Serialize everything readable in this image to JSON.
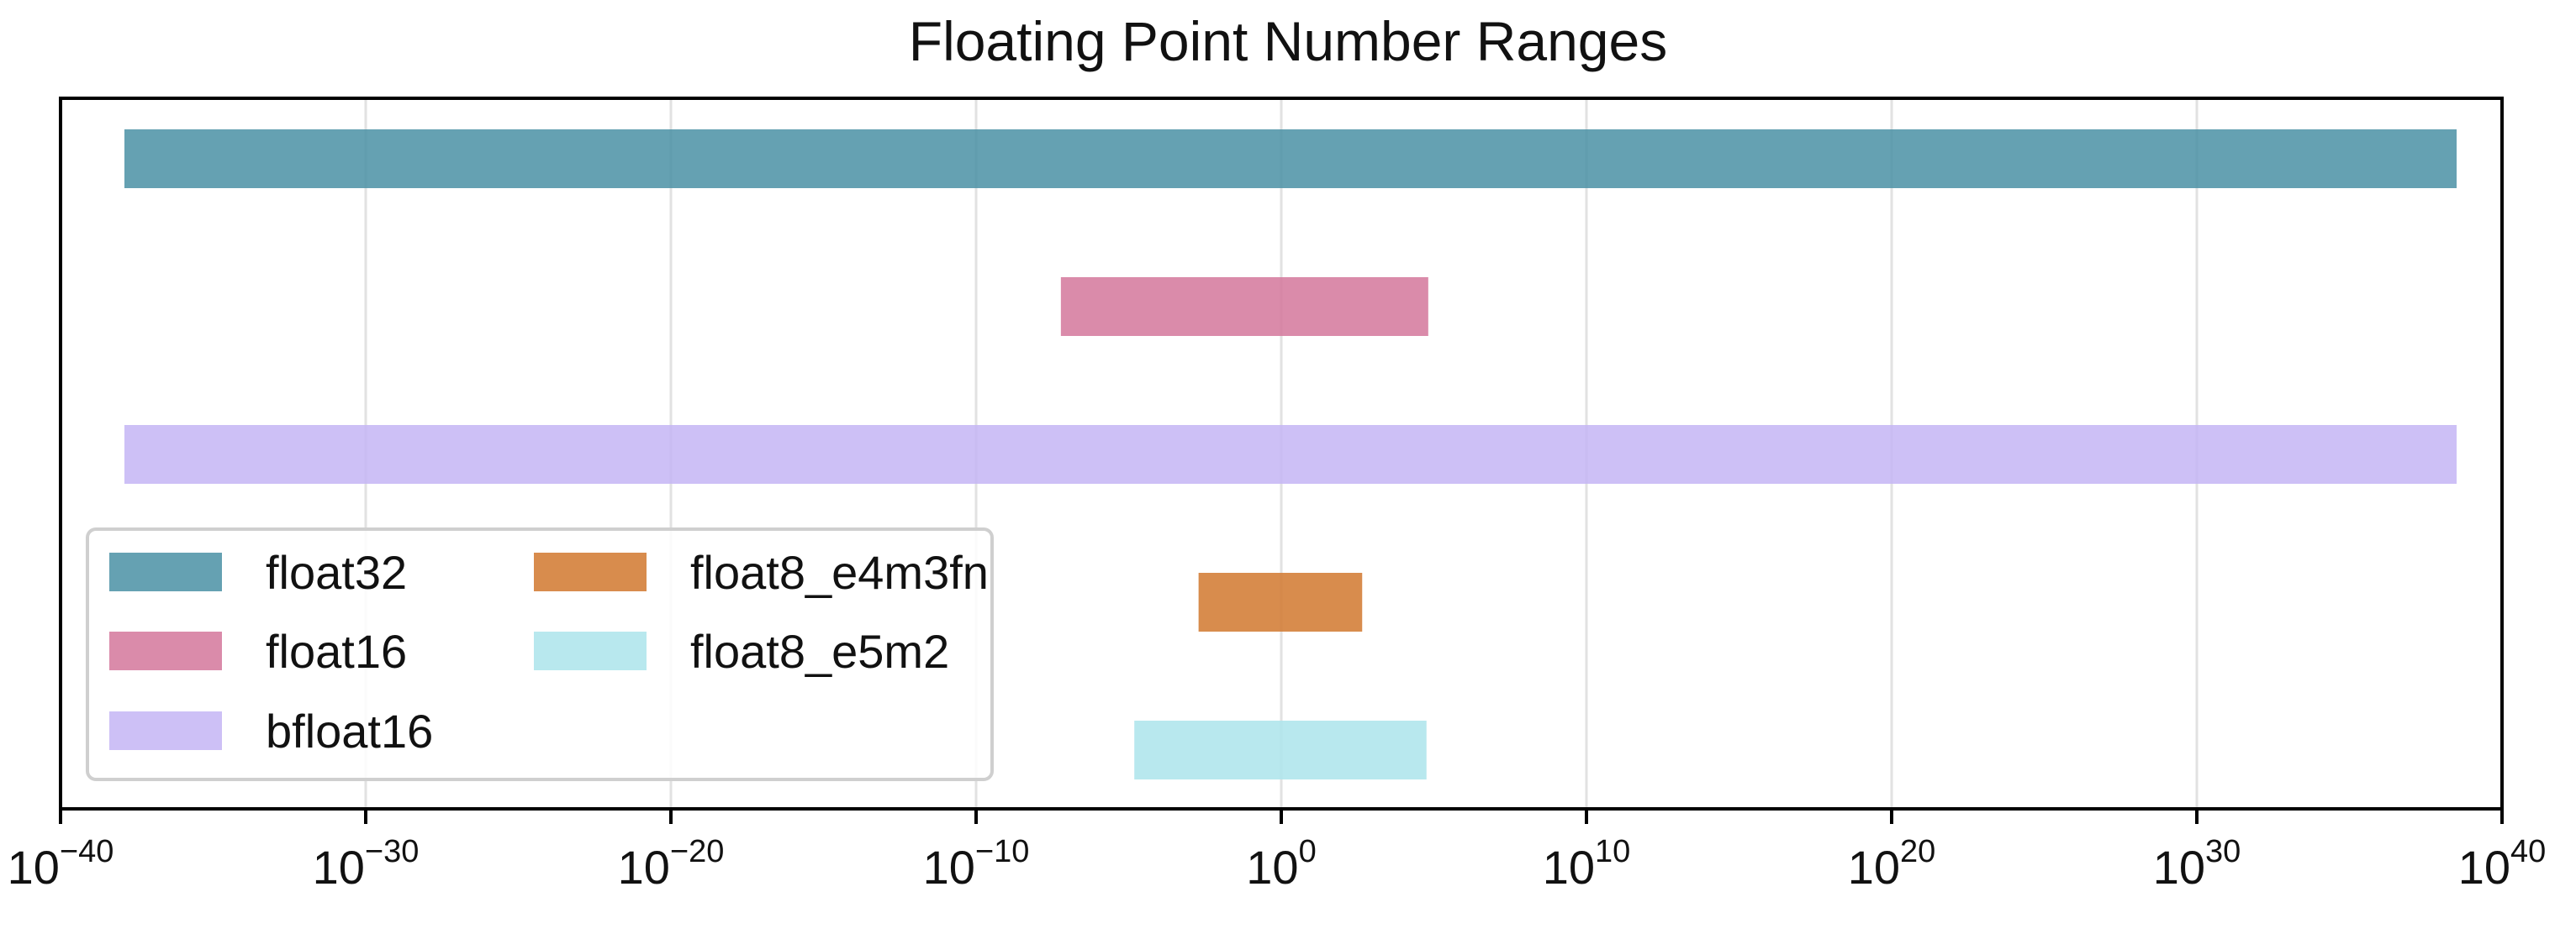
{
  "chart_data": {
    "type": "bar",
    "orientation": "horizontal",
    "title": "Floating Point Number Ranges",
    "xlabel": "",
    "ylabel": "",
    "x_scale": "log",
    "xlim": [
      1e-40,
      1e+40
    ],
    "x_ticks": [
      {
        "value": 1e-40,
        "base": "10",
        "exp": "−40"
      },
      {
        "value": 1e-30,
        "base": "10",
        "exp": "−30"
      },
      {
        "value": 1e-20,
        "base": "10",
        "exp": "−20"
      },
      {
        "value": 1e-10,
        "base": "10",
        "exp": "−10"
      },
      {
        "value": 1,
        "base": "10",
        "exp": "0"
      },
      {
        "value": 10000000000.0,
        "base": "10",
        "exp": "10"
      },
      {
        "value": 1e+20,
        "base": "10",
        "exp": "20"
      },
      {
        "value": 1e+30,
        "base": "10",
        "exp": "30"
      },
      {
        "value": 1e+40,
        "base": "10",
        "exp": "40"
      }
    ],
    "grid": "x-only",
    "legend_position": "bottom-left",
    "legend_columns": 2,
    "series": [
      {
        "name": "float32",
        "min": 1.4e-45,
        "max": 3.4e+38,
        "color": "#4a90a4",
        "opacity": 0.85
      },
      {
        "name": "float16",
        "min": 6e-08,
        "max": 65504,
        "color": "#d4779b",
        "opacity": 0.85
      },
      {
        "name": "bfloat16",
        "min": 9.2e-41,
        "max": 3.39e+38,
        "color": "#c4b5f4",
        "opacity": 0.85
      },
      {
        "name": "float8_e4m3fn",
        "min": 0.00195,
        "max": 448,
        "color": "#d4803a",
        "opacity": 0.9
      },
      {
        "name": "float8_e5m2",
        "min": 1.53e-05,
        "max": 57344,
        "color": "#b0e6ec",
        "opacity": 0.9
      }
    ]
  }
}
